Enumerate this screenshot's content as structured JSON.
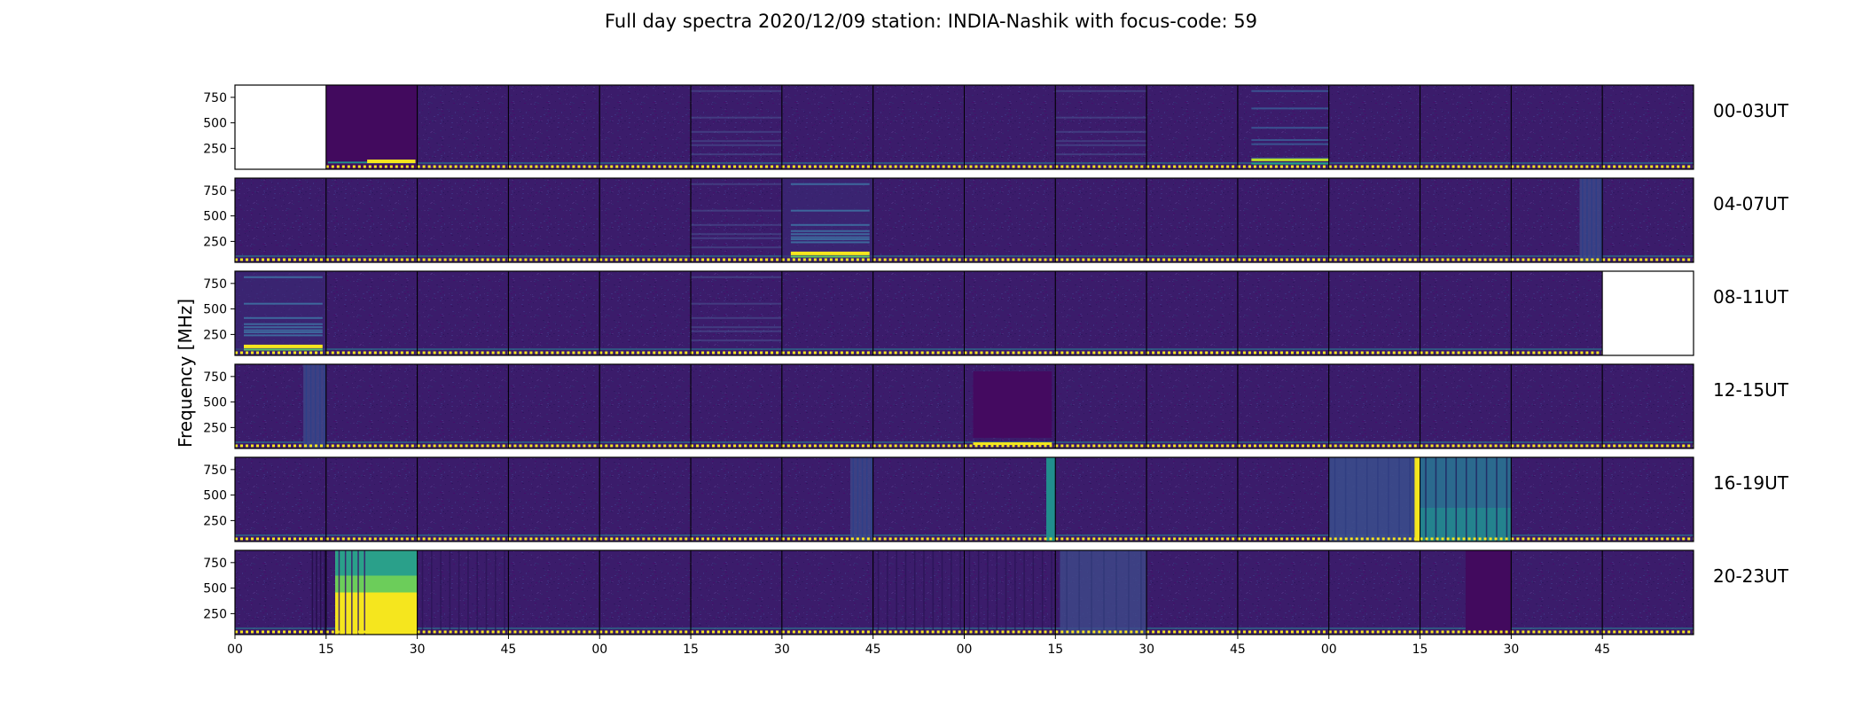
{
  "figure": {
    "title": "Full day spectra 2020/12/09 station: INDIA-Nashik with focus-code: 59"
  },
  "chart_data": {
    "type": "heatmap",
    "title": "Full day spectra 2020/12/09 station: INDIA-Nashik with focus-code: 59",
    "ylabel": "Frequency [MHz]",
    "xlabel": "",
    "yticks": [
      "750",
      "500",
      "250"
    ],
    "ytick_values": [
      750,
      500,
      250
    ],
    "ylim": [
      45,
      870
    ],
    "xtick_labels": [
      "00",
      "15",
      "30",
      "45",
      "00",
      "15",
      "30",
      "45",
      "00",
      "15",
      "30",
      "45",
      "00",
      "15",
      "30",
      "45"
    ],
    "colormap": "viridis",
    "rows": [
      {
        "label": "00-03UT",
        "panels": [
          "empty",
          "dark-low-band",
          "normal",
          "normal",
          "normal",
          "faint-bands",
          "normal",
          "normal",
          "normal",
          "faint-bands",
          "normal",
          "bands",
          "normal",
          "normal",
          "normal",
          "normal"
        ]
      },
      {
        "label": "04-07UT",
        "panels": [
          "normal",
          "normal",
          "normal",
          "normal",
          "normal",
          "faint-bands",
          "strong-bands",
          "normal",
          "normal",
          "normal",
          "normal",
          "normal",
          "normal",
          "normal",
          "right-burst",
          "normal"
        ]
      },
      {
        "label": "08-11UT",
        "panels": [
          "strong-bands",
          "normal",
          "normal",
          "normal",
          "normal",
          "faint-bands",
          "normal",
          "normal",
          "normal",
          "normal",
          "normal",
          "normal",
          "normal",
          "normal",
          "normal",
          "empty"
        ]
      },
      {
        "label": "12-15UT",
        "panels": [
          "right-burst",
          "normal",
          "normal",
          "normal",
          "normal",
          "normal",
          "normal",
          "normal",
          "dark-line",
          "normal",
          "normal",
          "normal",
          "normal",
          "normal",
          "normal",
          "normal"
        ]
      },
      {
        "label": "16-19UT",
        "panels": [
          "normal",
          "normal",
          "normal",
          "normal",
          "normal",
          "normal",
          "right-burst",
          "normal",
          "narrow-right",
          "normal",
          "normal",
          "normal",
          "broadband-right",
          "striped-burst",
          "normal",
          "normal"
        ]
      },
      {
        "label": "20-23UT",
        "panels": [
          "dark-stripes-right",
          "bright-burst",
          "striped",
          "normal",
          "normal",
          "normal",
          "normal",
          "striped",
          "striped",
          "mid-burst",
          "normal",
          "normal",
          "normal",
          "dark-right",
          "normal",
          "normal"
        ]
      }
    ]
  }
}
